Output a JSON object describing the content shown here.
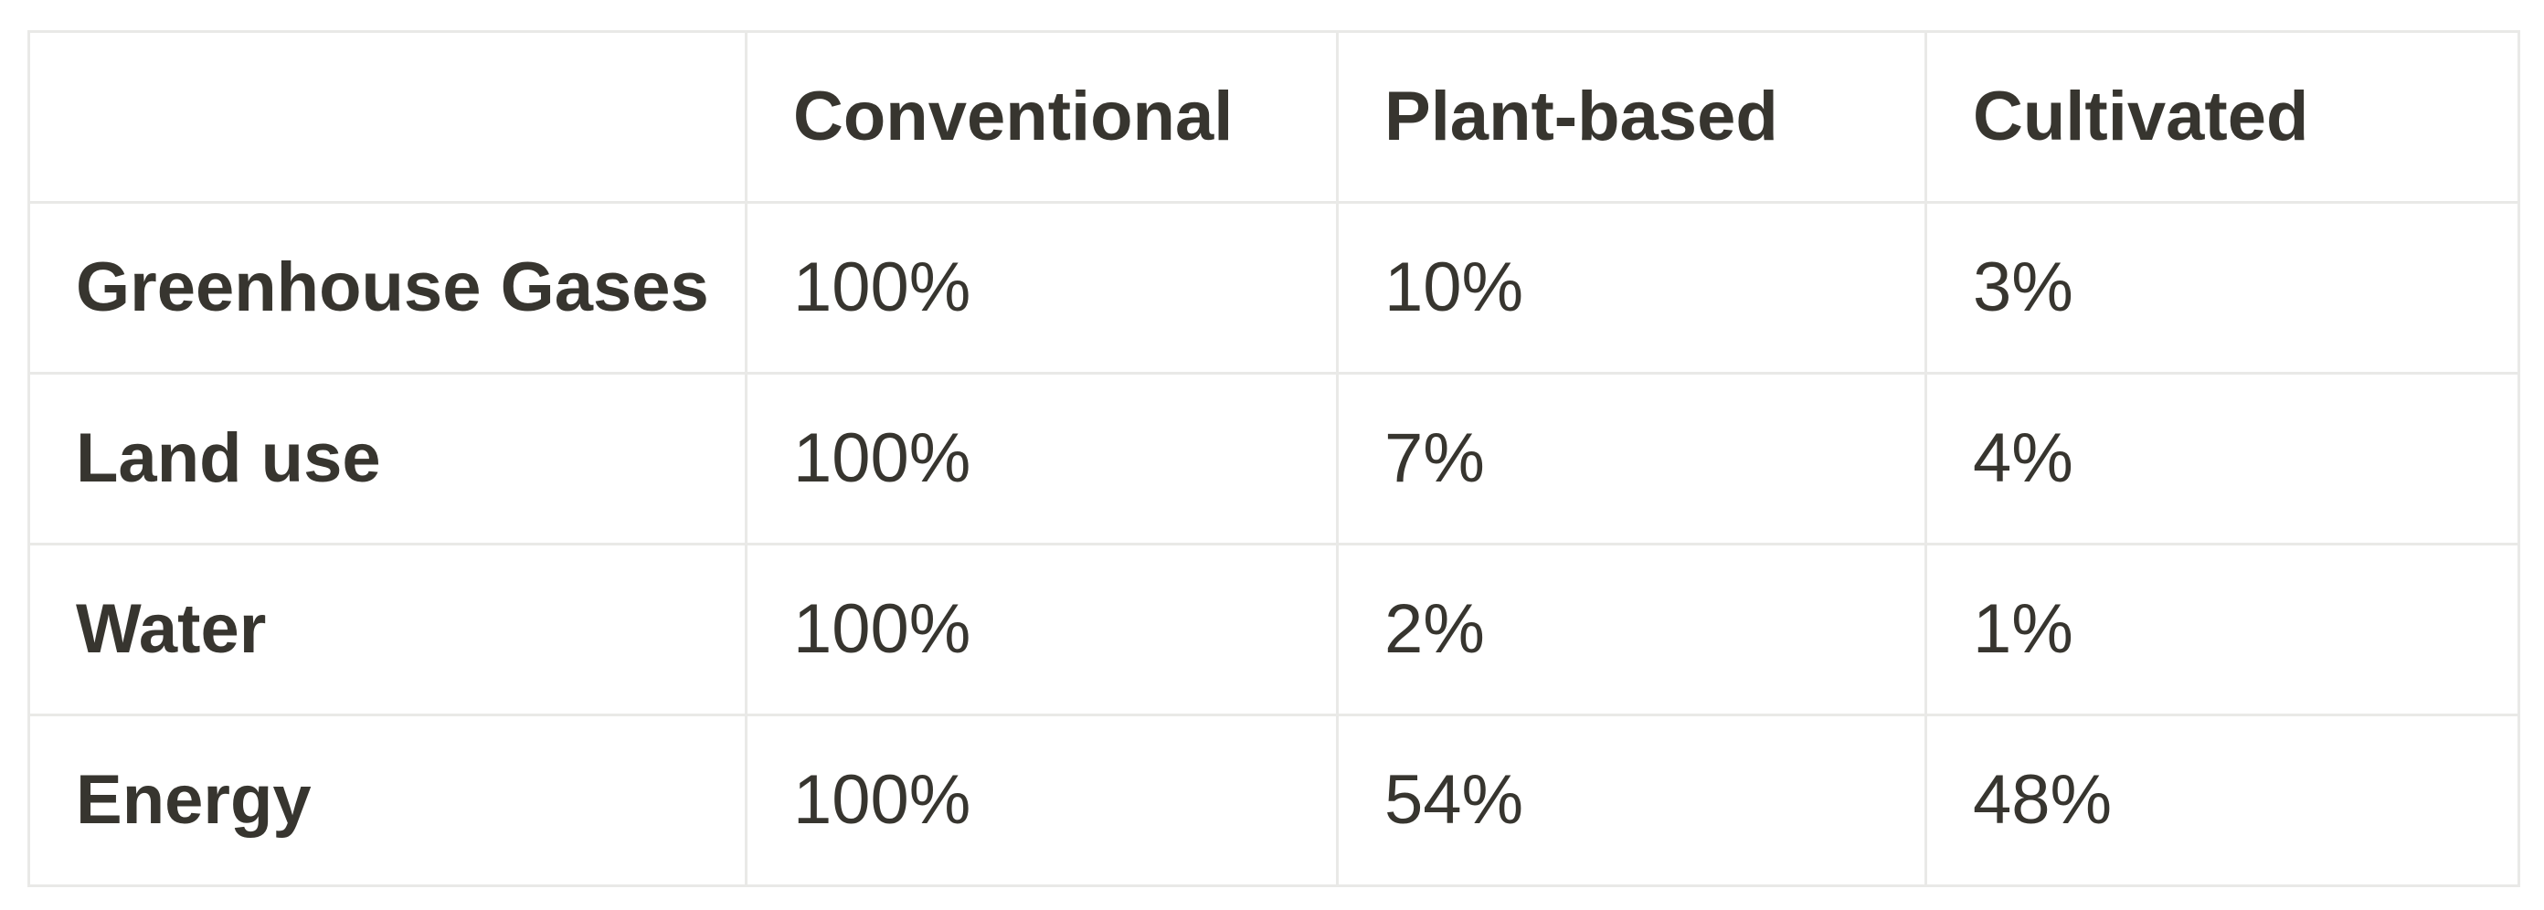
{
  "table": {
    "columns": [
      "",
      "Conventional",
      "Plant-based",
      "Cultivated"
    ],
    "rows": [
      {
        "label": "Greenhouse Gases",
        "values": [
          "100%",
          "10%",
          "3%"
        ]
      },
      {
        "label": "Land use",
        "values": [
          "100%",
          "7%",
          "4%"
        ]
      },
      {
        "label": "Water",
        "values": [
          "100%",
          "2%",
          "1%"
        ]
      },
      {
        "label": "Energy",
        "values": [
          "100%",
          "54%",
          "48%"
        ]
      }
    ],
    "colors": {
      "text": "#37352f",
      "border": "#e9e9e7",
      "background": "#ffffff"
    }
  },
  "chart_data": {
    "type": "table",
    "title": "",
    "categories": [
      "Greenhouse Gases",
      "Land use",
      "Water",
      "Energy"
    ],
    "series": [
      {
        "name": "Conventional",
        "values": [
          100,
          100,
          100,
          100
        ]
      },
      {
        "name": "Plant-based",
        "values": [
          10,
          7,
          2,
          54
        ]
      },
      {
        "name": "Cultivated",
        "values": [
          3,
          4,
          1,
          48
        ]
      }
    ],
    "unit": "%"
  }
}
